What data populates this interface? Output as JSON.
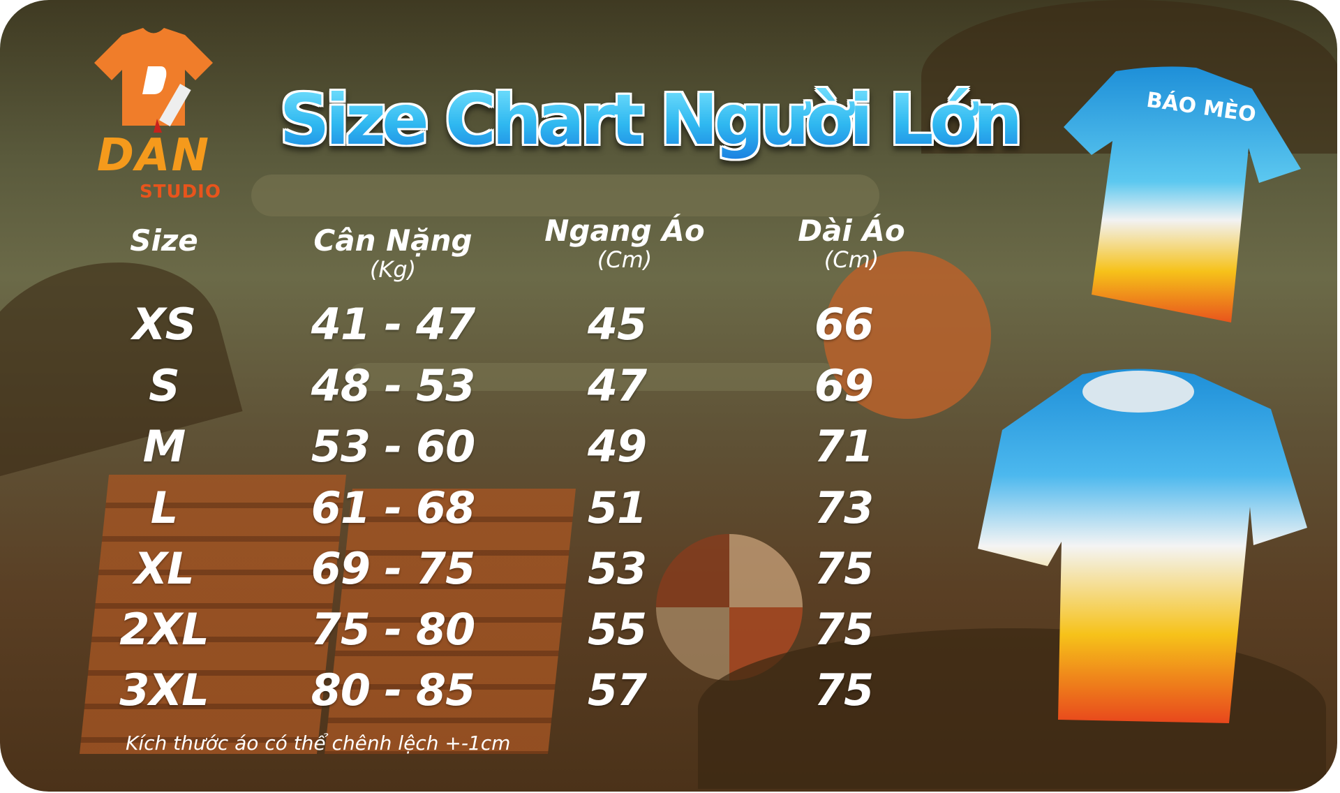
{
  "title": "Size Chart Người Lớn",
  "brand": {
    "name": "DAN",
    "sub": "STUDIO",
    "colors": {
      "primary": "#f59a1c",
      "accent": "#e8541c"
    }
  },
  "table": {
    "headers": [
      {
        "label": "Size",
        "unit": ""
      },
      {
        "label": "Cân Nặng",
        "unit": "(Kg)"
      },
      {
        "label": "Ngang Áo",
        "unit": "(Cm)"
      },
      {
        "label": "Dài Áo",
        "unit": "(Cm)"
      }
    ],
    "rows": [
      [
        "XS",
        "41 - 47",
        "45",
        "66"
      ],
      [
        "S",
        "48 - 53",
        "47",
        "69"
      ],
      [
        "M",
        "53 - 60",
        "49",
        "71"
      ],
      [
        "L",
        "61 - 68",
        "51",
        "73"
      ],
      [
        "XL",
        "69 - 75",
        "53",
        "75"
      ],
      [
        "2XL",
        "75 - 80",
        "55",
        "75"
      ],
      [
        "3XL",
        "80 - 85",
        "57",
        "75"
      ]
    ]
  },
  "note": "Kích thước áo có thể chênh lệch +-1cm",
  "product": {
    "back_print": "BÁO MÈO",
    "colors": [
      "#1e8fd8",
      "#ffffff",
      "#f6c21a",
      "#e8541c"
    ]
  }
}
